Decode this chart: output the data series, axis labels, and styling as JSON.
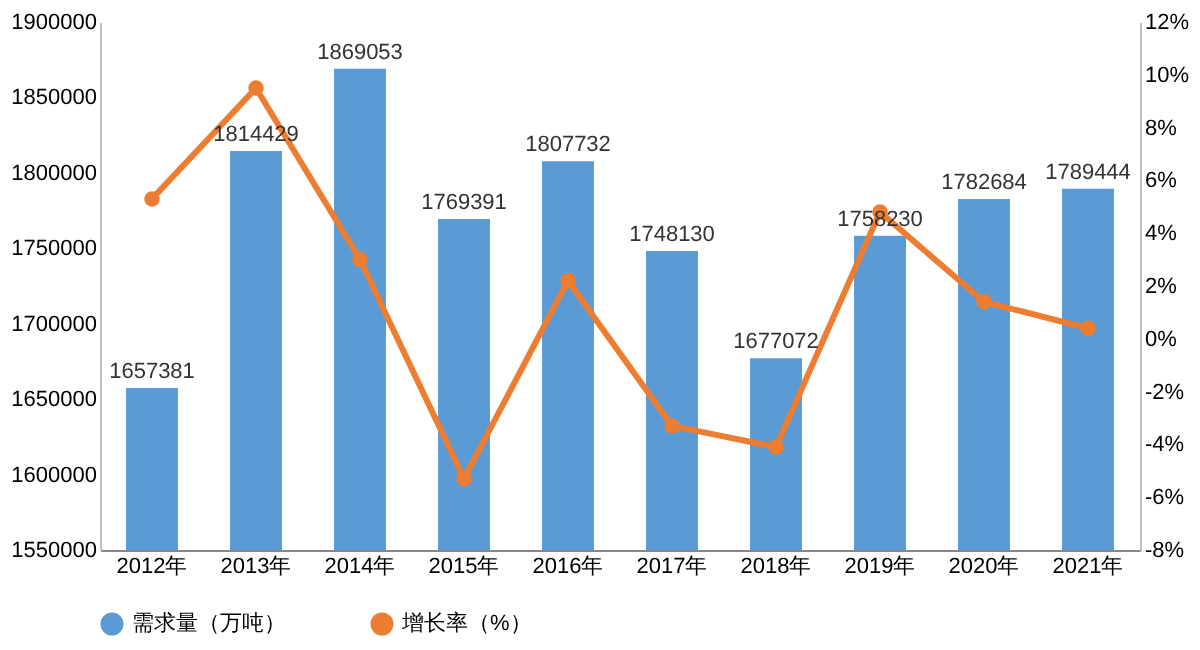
{
  "chart_data": {
    "type": "bar",
    "categories": [
      "2012年",
      "2013年",
      "2014年",
      "2015年",
      "2016年",
      "2017年",
      "2018年",
      "2019年",
      "2020年",
      "2021年"
    ],
    "series": [
      {
        "name": "需求量（万吨）",
        "color": "#5b9bd5",
        "values": [
          1657381,
          1814429,
          1869053,
          1769391,
          1807732,
          1748130,
          1677072,
          1758230,
          1782684,
          1789444
        ],
        "value_labels": [
          "1657381",
          "1814429",
          "1869053",
          "1769391",
          "1807732",
          "1748130",
          "1677072",
          "1758230",
          "1782684",
          "1789444"
        ]
      },
      {
        "name": "增长率（%）",
        "type": "line",
        "axis": "y2",
        "color": "#ed7d31",
        "marker": "circle",
        "values": [
          5.3,
          9.5,
          3.0,
          -5.3,
          2.2,
          -3.3,
          -4.1,
          4.8,
          1.4,
          0.4
        ]
      }
    ],
    "ylim": [
      1550000,
      1900000
    ],
    "yticks": [
      1550000,
      1600000,
      1650000,
      1700000,
      1750000,
      1800000,
      1850000,
      1900000
    ],
    "y2lim": [
      -8,
      12
    ],
    "y2ticks": [
      {
        "value": -8,
        "label": "-8%"
      },
      {
        "value": -6,
        "label": "-6%"
      },
      {
        "value": -4,
        "label": "-4%"
      },
      {
        "value": -2,
        "label": "-2%"
      },
      {
        "value": 0,
        "label": "0%"
      },
      {
        "value": 2,
        "label": "2%"
      },
      {
        "value": 4,
        "label": "4%"
      },
      {
        "value": 6,
        "label": "6%"
      },
      {
        "value": 8,
        "label": "8%"
      },
      {
        "value": 10,
        "label": "10%"
      },
      {
        "value": 12,
        "label": "12%"
      }
    ],
    "grid": false,
    "legend": "bottom"
  }
}
